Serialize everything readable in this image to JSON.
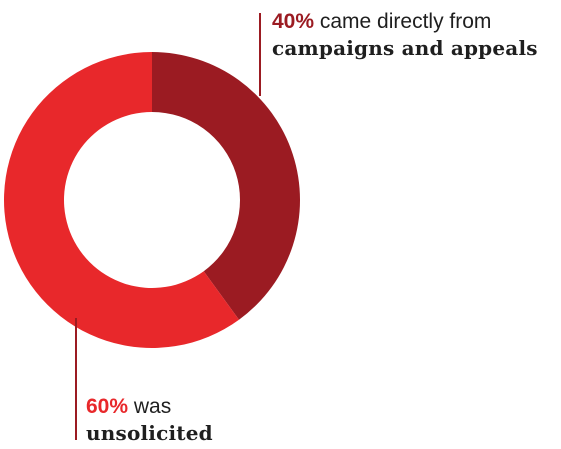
{
  "colors": {
    "campaigns": "#9b1b22",
    "unsolicited": "#e8282b",
    "leader_line": "#9b1b22",
    "text": "#1f1f1f"
  },
  "chart_data": {
    "type": "pie",
    "donut": true,
    "slices": [
      {
        "name": "campaigns and appeals",
        "value": 40,
        "color": "#9b1b22"
      },
      {
        "name": "unsolicited",
        "value": 60,
        "color": "#e8282b"
      }
    ],
    "annotations": [
      {
        "percent": "40%",
        "text": "came directly from",
        "bold_text": "campaigns and appeals"
      },
      {
        "percent": "60%",
        "text": "was",
        "bold_text": "unsolicited"
      }
    ]
  }
}
